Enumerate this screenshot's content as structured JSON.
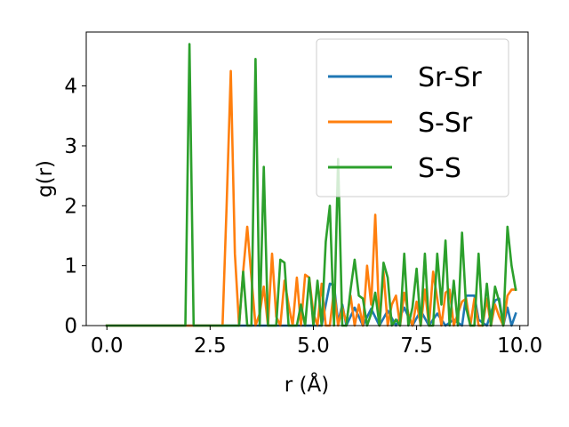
{
  "chart_data": {
    "type": "line",
    "xlabel": "r (Å)",
    "ylabel": "g(r)",
    "xlim": [
      -0.5,
      10.2
    ],
    "ylim": [
      0,
      4.9
    ],
    "xticks": [
      0.0,
      2.5,
      5.0,
      7.5,
      10.0
    ],
    "xtick_labels": [
      "0.0",
      "2.5",
      "5.0",
      "7.5",
      "10.0"
    ],
    "yticks": [
      0,
      1,
      2,
      3,
      4
    ],
    "ytick_labels": [
      "0",
      "1",
      "2",
      "3",
      "4"
    ],
    "grid": false,
    "legend_position": "top-right",
    "series": [
      {
        "name": "Sr-Sr",
        "color": "#1f77b4",
        "x": [
          0.0,
          1.9,
          2.0,
          5.2,
          5.3,
          5.4,
          5.5,
          5.6,
          5.7,
          5.8,
          6.0,
          6.2,
          6.4,
          6.6,
          6.8,
          7.0,
          7.2,
          7.4,
          7.6,
          7.8,
          8.0,
          8.2,
          8.4,
          8.6,
          8.7,
          8.9,
          9.0,
          9.2,
          9.4,
          9.5,
          9.6,
          9.7,
          9.8,
          9.9
        ],
        "y": [
          0,
          0,
          0,
          0,
          0.35,
          0.7,
          0.68,
          0.05,
          0.35,
          0.0,
          0.3,
          0.0,
          0.28,
          0.0,
          0.25,
          0.0,
          0.3,
          0.0,
          0.25,
          0.0,
          0.2,
          0.0,
          0.1,
          0.0,
          0.5,
          0.5,
          0.1,
          0.0,
          0.42,
          0.45,
          0.0,
          0.3,
          0.0,
          0.2
        ]
      },
      {
        "name": "S-Sr",
        "color": "#ff7f0e",
        "x": [
          0.0,
          2.8,
          2.9,
          3.0,
          3.1,
          3.2,
          3.3,
          3.4,
          3.5,
          3.6,
          3.7,
          3.8,
          3.9,
          4.0,
          4.1,
          4.2,
          4.3,
          4.4,
          4.5,
          4.6,
          4.7,
          4.8,
          4.9,
          5.0,
          5.1,
          5.2,
          5.3,
          5.4,
          5.5,
          5.6,
          5.7,
          5.8,
          5.9,
          6.0,
          6.1,
          6.2,
          6.3,
          6.4,
          6.5,
          6.6,
          6.7,
          6.8,
          6.9,
          7.0,
          7.1,
          7.2,
          7.3,
          7.4,
          7.5,
          7.6,
          7.7,
          7.8,
          7.9,
          8.0,
          8.1,
          8.2,
          8.3,
          8.4,
          8.5,
          8.6,
          8.7,
          8.8,
          8.9,
          9.0,
          9.1,
          9.2,
          9.3,
          9.4,
          9.5,
          9.6,
          9.7,
          9.8,
          9.9
        ],
        "y": [
          0,
          0,
          2.0,
          4.25,
          1.2,
          0.0,
          0.9,
          1.65,
          0.8,
          0.0,
          0.2,
          0.65,
          0.0,
          1.2,
          0.15,
          0.0,
          0.75,
          0.35,
          0.0,
          0.8,
          0.0,
          0.85,
          0.8,
          0.2,
          0.0,
          0.7,
          0.0,
          0.0,
          0.6,
          0.0,
          0.3,
          0.05,
          0.5,
          0.0,
          0.35,
          0.0,
          1.0,
          0.35,
          1.85,
          0.0,
          0.9,
          0.0,
          0.35,
          0.5,
          0.0,
          0.55,
          0.2,
          0.0,
          0.4,
          0.0,
          0.6,
          0.0,
          0.9,
          0.45,
          0.0,
          0.55,
          0.6,
          0.0,
          0.2,
          0.4,
          0.45,
          0.0,
          0.45,
          0.0,
          0.0,
          0.45,
          0.0,
          0.35,
          0.15,
          0.0,
          0.5,
          0.6,
          0.6
        ]
      },
      {
        "name": "S-S",
        "color": "#2ca02c",
        "x": [
          0.0,
          1.9,
          2.0,
          2.1,
          3.2,
          3.3,
          3.4,
          3.5,
          3.6,
          3.7,
          3.8,
          3.9,
          4.0,
          4.1,
          4.2,
          4.3,
          4.4,
          4.5,
          4.6,
          4.7,
          4.8,
          4.9,
          5.0,
          5.1,
          5.2,
          5.3,
          5.4,
          5.5,
          5.6,
          5.7,
          5.8,
          5.9,
          6.0,
          6.1,
          6.2,
          6.3,
          6.4,
          6.5,
          6.6,
          6.7,
          6.8,
          6.9,
          7.0,
          7.1,
          7.2,
          7.3,
          7.4,
          7.5,
          7.6,
          7.7,
          7.8,
          7.9,
          8.0,
          8.1,
          8.2,
          8.3,
          8.4,
          8.5,
          8.6,
          8.7,
          8.8,
          8.9,
          9.0,
          9.1,
          9.2,
          9.3,
          9.4,
          9.5,
          9.6,
          9.7,
          9.8,
          9.9
        ],
        "y": [
          0,
          0,
          4.7,
          0,
          0,
          0.9,
          0.0,
          0.0,
          4.45,
          0.0,
          2.65,
          0.0,
          0.0,
          0.0,
          1.1,
          1.05,
          0.0,
          0.0,
          0.0,
          0.35,
          0.0,
          0.8,
          0.0,
          0.75,
          0.0,
          1.4,
          2.0,
          0.0,
          2.78,
          0.0,
          0.0,
          0.6,
          1.1,
          0.5,
          0.45,
          0.0,
          0.2,
          0.55,
          0.0,
          1.05,
          0.8,
          0.0,
          0.1,
          0.0,
          1.2,
          0.0,
          0.3,
          0.95,
          0.0,
          1.2,
          0.0,
          0.0,
          1.2,
          0.35,
          1.42,
          0.0,
          0.75,
          0.0,
          1.55,
          0.3,
          0.0,
          0.0,
          1.2,
          0.0,
          0.7,
          0.0,
          0.65,
          0.4,
          0.0,
          1.65,
          1.0,
          0.6
        ]
      }
    ]
  }
}
